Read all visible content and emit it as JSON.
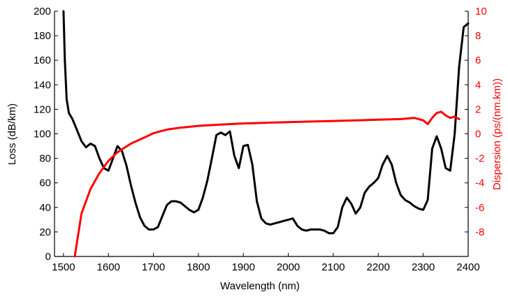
{
  "chart_data": {
    "type": "line",
    "title": "",
    "xlabel": "Wavelength (nm)",
    "ylabel": "Loss (dB/km)",
    "y2label": "Dispersion (ps/(nm.km))",
    "xlim": [
      1480,
      2400
    ],
    "ylim": [
      0,
      200
    ],
    "y2lim": [
      -10,
      10
    ],
    "x_ticks": [
      "1500",
      "1600",
      "1700",
      "1800",
      "1900",
      "2000",
      "2100",
      "2200",
      "2300",
      "2400"
    ],
    "y_ticks": [
      "0",
      "20",
      "40",
      "60",
      "80",
      "100",
      "120",
      "140",
      "160",
      "180",
      "200"
    ],
    "y2_ticks": [
      "-8",
      "-6",
      "-4",
      "-2",
      "0",
      "2",
      "4",
      "6",
      "8",
      "10"
    ],
    "grid": false,
    "colors": {
      "loss": "#000000",
      "dispersion": "#ff0000",
      "axis": "#000000",
      "right_axis": "#ff0000"
    },
    "series": [
      {
        "axis": "left",
        "color": "#000000",
        "points": [
          [
            1500,
            200
          ],
          [
            1503,
            160
          ],
          [
            1507,
            128
          ],
          [
            1512,
            117
          ],
          [
            1520,
            112
          ],
          [
            1530,
            103
          ],
          [
            1540,
            94
          ],
          [
            1550,
            89
          ],
          [
            1560,
            92
          ],
          [
            1570,
            90
          ],
          [
            1580,
            80
          ],
          [
            1590,
            72
          ],
          [
            1600,
            70
          ],
          [
            1610,
            80
          ],
          [
            1620,
            90
          ],
          [
            1630,
            86
          ],
          [
            1640,
            74
          ],
          [
            1650,
            58
          ],
          [
            1660,
            44
          ],
          [
            1670,
            32
          ],
          [
            1680,
            25
          ],
          [
            1690,
            22
          ],
          [
            1700,
            22
          ],
          [
            1710,
            24
          ],
          [
            1720,
            33
          ],
          [
            1730,
            42
          ],
          [
            1740,
            45
          ],
          [
            1750,
            45
          ],
          [
            1760,
            44
          ],
          [
            1770,
            41
          ],
          [
            1780,
            38
          ],
          [
            1790,
            36
          ],
          [
            1800,
            38
          ],
          [
            1810,
            48
          ],
          [
            1820,
            62
          ],
          [
            1830,
            80
          ],
          [
            1840,
            99
          ],
          [
            1850,
            101
          ],
          [
            1860,
            99
          ],
          [
            1870,
            102
          ],
          [
            1880,
            82
          ],
          [
            1890,
            72
          ],
          [
            1900,
            90
          ],
          [
            1910,
            91
          ],
          [
            1920,
            75
          ],
          [
            1930,
            45
          ],
          [
            1940,
            31
          ],
          [
            1950,
            27
          ],
          [
            1960,
            26
          ],
          [
            1970,
            27
          ],
          [
            1980,
            28
          ],
          [
            1990,
            29
          ],
          [
            2000,
            30
          ],
          [
            2010,
            31
          ],
          [
            2020,
            25
          ],
          [
            2030,
            22
          ],
          [
            2040,
            21
          ],
          [
            2050,
            22
          ],
          [
            2060,
            22
          ],
          [
            2070,
            22
          ],
          [
            2080,
            21
          ],
          [
            2090,
            19
          ],
          [
            2100,
            19
          ],
          [
            2110,
            24
          ],
          [
            2120,
            40
          ],
          [
            2130,
            48
          ],
          [
            2140,
            43
          ],
          [
            2150,
            35
          ],
          [
            2160,
            40
          ],
          [
            2170,
            52
          ],
          [
            2180,
            57
          ],
          [
            2190,
            60
          ],
          [
            2200,
            64
          ],
          [
            2210,
            75
          ],
          [
            2220,
            82
          ],
          [
            2230,
            75
          ],
          [
            2240,
            60
          ],
          [
            2250,
            50
          ],
          [
            2260,
            46
          ],
          [
            2270,
            44
          ],
          [
            2280,
            41
          ],
          [
            2290,
            39
          ],
          [
            2300,
            38
          ],
          [
            2310,
            46
          ],
          [
            2320,
            88
          ],
          [
            2330,
            98
          ],
          [
            2340,
            88
          ],
          [
            2350,
            72
          ],
          [
            2360,
            70
          ],
          [
            2370,
            100
          ],
          [
            2380,
            155
          ],
          [
            2390,
            187
          ],
          [
            2400,
            190
          ]
        ]
      },
      {
        "axis": "right",
        "color": "#ff0000",
        "points": [
          [
            1525,
            -10
          ],
          [
            1540,
            -6.5
          ],
          [
            1560,
            -4.5
          ],
          [
            1580,
            -3.2
          ],
          [
            1600,
            -2.2
          ],
          [
            1620,
            -1.5
          ],
          [
            1650,
            -0.8
          ],
          [
            1680,
            -0.3
          ],
          [
            1700,
            0.05
          ],
          [
            1730,
            0.35
          ],
          [
            1760,
            0.5
          ],
          [
            1800,
            0.65
          ],
          [
            1850,
            0.75
          ],
          [
            1900,
            0.85
          ],
          [
            1950,
            0.9
          ],
          [
            2000,
            0.95
          ],
          [
            2050,
            1.0
          ],
          [
            2100,
            1.05
          ],
          [
            2150,
            1.1
          ],
          [
            2200,
            1.15
          ],
          [
            2250,
            1.2
          ],
          [
            2280,
            1.3
          ],
          [
            2300,
            1.1
          ],
          [
            2310,
            0.8
          ],
          [
            2320,
            1.3
          ],
          [
            2330,
            1.7
          ],
          [
            2340,
            1.8
          ],
          [
            2350,
            1.5
          ],
          [
            2360,
            1.3
          ],
          [
            2370,
            1.4
          ],
          [
            2380,
            1.2
          ]
        ]
      }
    ]
  }
}
